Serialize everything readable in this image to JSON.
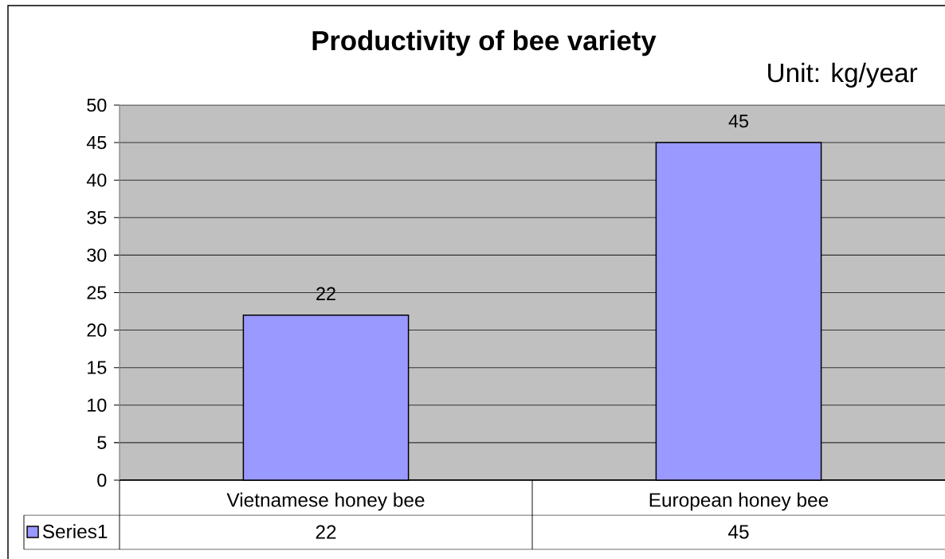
{
  "chart_data": {
    "type": "bar",
    "title": "Productivity of bee variety",
    "subtitle": "Unit: kg/year",
    "categories": [
      "Vietnamese honey bee",
      "European honey bee"
    ],
    "series": [
      {
        "name": "Series1",
        "color": "#9999ff",
        "values": [
          22,
          45
        ]
      }
    ],
    "ylim": [
      0,
      50
    ],
    "yticks": [
      0,
      5,
      10,
      15,
      20,
      25,
      30,
      35,
      40,
      45,
      50
    ],
    "grid": "y",
    "legend": "bottom left",
    "data_labels": true,
    "annotations": [
      "22",
      "45"
    ]
  }
}
